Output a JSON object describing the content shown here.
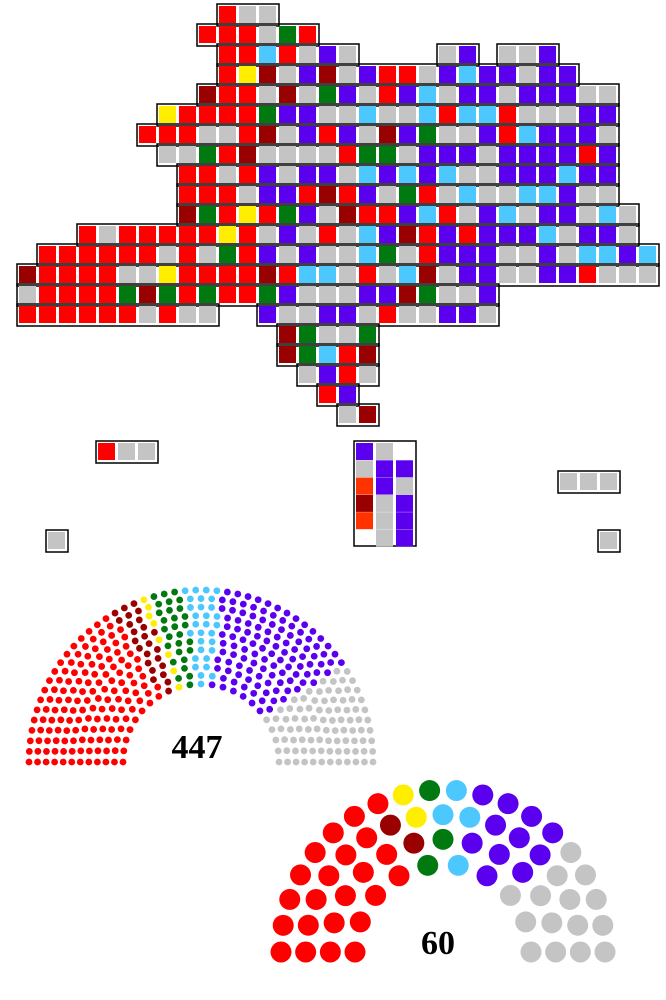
{
  "chart_data": [
    {
      "type": "parliament",
      "total": 447,
      "series": [
        {
          "color": "#ff0000",
          "values": [
            150
          ]
        },
        {
          "color": "#990000",
          "values": [
            25
          ]
        },
        {
          "color": "#ffee00",
          "values": [
            8
          ]
        },
        {
          "color": "#007a10",
          "values": [
            28
          ]
        },
        {
          "color": "#4dc8ff",
          "values": [
            30
          ]
        },
        {
          "color": "#5a00ee",
          "values": [
            116
          ]
        },
        {
          "color": "#c4c4c4",
          "values": [
            90
          ]
        }
      ]
    },
    {
      "type": "parliament",
      "total": 60,
      "series": [
        {
          "color": "#ff0000",
          "values": [
            23
          ]
        },
        {
          "color": "#990000",
          "values": [
            2
          ]
        },
        {
          "color": "#ffee00",
          "values": [
            2
          ]
        },
        {
          "color": "#007a10",
          "values": [
            3
          ]
        },
        {
          "color": "#4dc8ff",
          "values": [
            4
          ]
        },
        {
          "color": "#5a00ee",
          "values": [
            11
          ]
        },
        {
          "color": "#c4c4c4",
          "values": [
            15
          ]
        }
      ]
    }
  ]
}
